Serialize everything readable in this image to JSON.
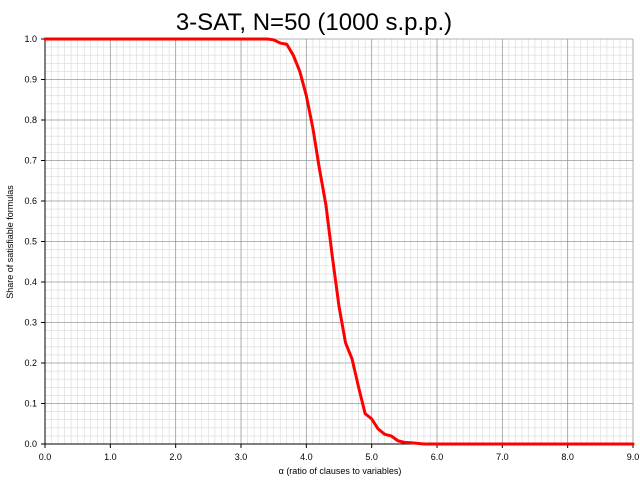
{
  "chart_data": {
    "type": "line",
    "title": "3-SAT, N=50 (1000 s.p.p.)",
    "xlabel": "α (ratio of clauses to variables)",
    "ylabel": "Share of satisfiable formulas",
    "xlim": [
      0,
      9
    ],
    "ylim": [
      0,
      1
    ],
    "x_ticks": [
      "0.0",
      "1.0",
      "2.0",
      "3.0",
      "4.0",
      "5.0",
      "6.0",
      "7.0",
      "8.0",
      "9.0"
    ],
    "y_ticks": [
      "0.0",
      "0.1",
      "0.2",
      "0.3",
      "0.4",
      "0.5",
      "0.6",
      "0.7",
      "0.8",
      "0.9",
      "1.0"
    ],
    "grid": true,
    "series": [
      {
        "color": "#ff0000",
        "x": [
          0.0,
          3.4,
          3.5,
          3.6,
          3.7,
          3.8,
          3.9,
          4.0,
          4.1,
          4.2,
          4.3,
          4.4,
          4.5,
          4.6,
          4.7,
          4.8,
          4.9,
          5.0,
          5.1,
          5.2,
          5.3,
          5.4,
          5.5,
          5.6,
          5.8,
          6.0,
          7.0,
          8.0,
          9.0
        ],
        "y": [
          1.0,
          1.0,
          0.998,
          0.99,
          0.987,
          0.96,
          0.92,
          0.86,
          0.78,
          0.68,
          0.59,
          0.46,
          0.34,
          0.25,
          0.21,
          0.14,
          0.075,
          0.062,
          0.037,
          0.024,
          0.02,
          0.008,
          0.004,
          0.003,
          0.0,
          0.0,
          0.0,
          0.0,
          0.0
        ]
      }
    ]
  }
}
